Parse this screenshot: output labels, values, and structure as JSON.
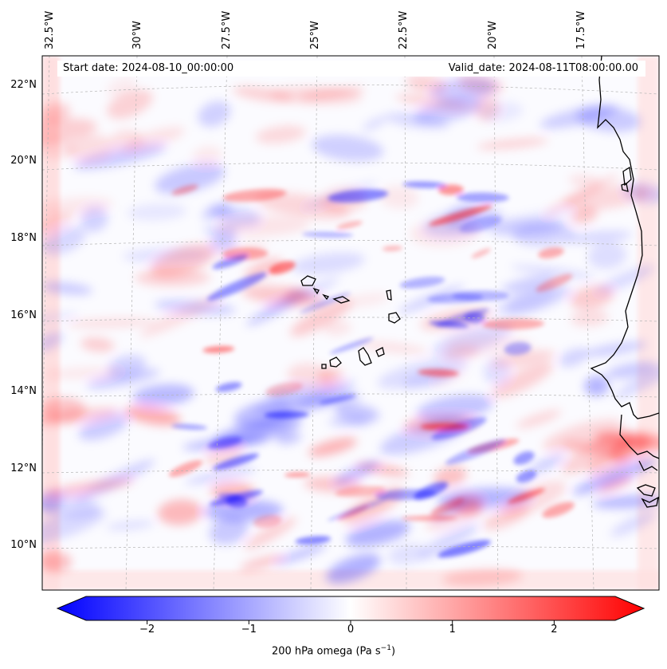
{
  "map": {
    "start_date_label": "Start date: 2024-08-10_00:00:00",
    "valid_date_label": "Valid_date: 2024-08-11T08:00:00.00",
    "lon_labels": [
      "32.5°W",
      "30°W",
      "27.5°W",
      "25°W",
      "22.5°W",
      "20°W",
      "17.5°W"
    ],
    "lat_labels": [
      "22°N",
      "20°N",
      "18°N",
      "16°N",
      "14°N",
      "12°N",
      "10°N"
    ],
    "field_colors": {
      "negative": "#0000ff",
      "zero": "#ffffff",
      "positive": "#ff0000"
    }
  },
  "colorbar": {
    "ticks": [
      "−2",
      "−1",
      "0",
      "1",
      "2"
    ],
    "tick_values": [
      -2,
      -1,
      0,
      1,
      2
    ],
    "range": [
      -2.6,
      2.6
    ],
    "label_main": "200 hPa omega (Pa s",
    "label_sup": "−1",
    "label_end": ")"
  }
}
